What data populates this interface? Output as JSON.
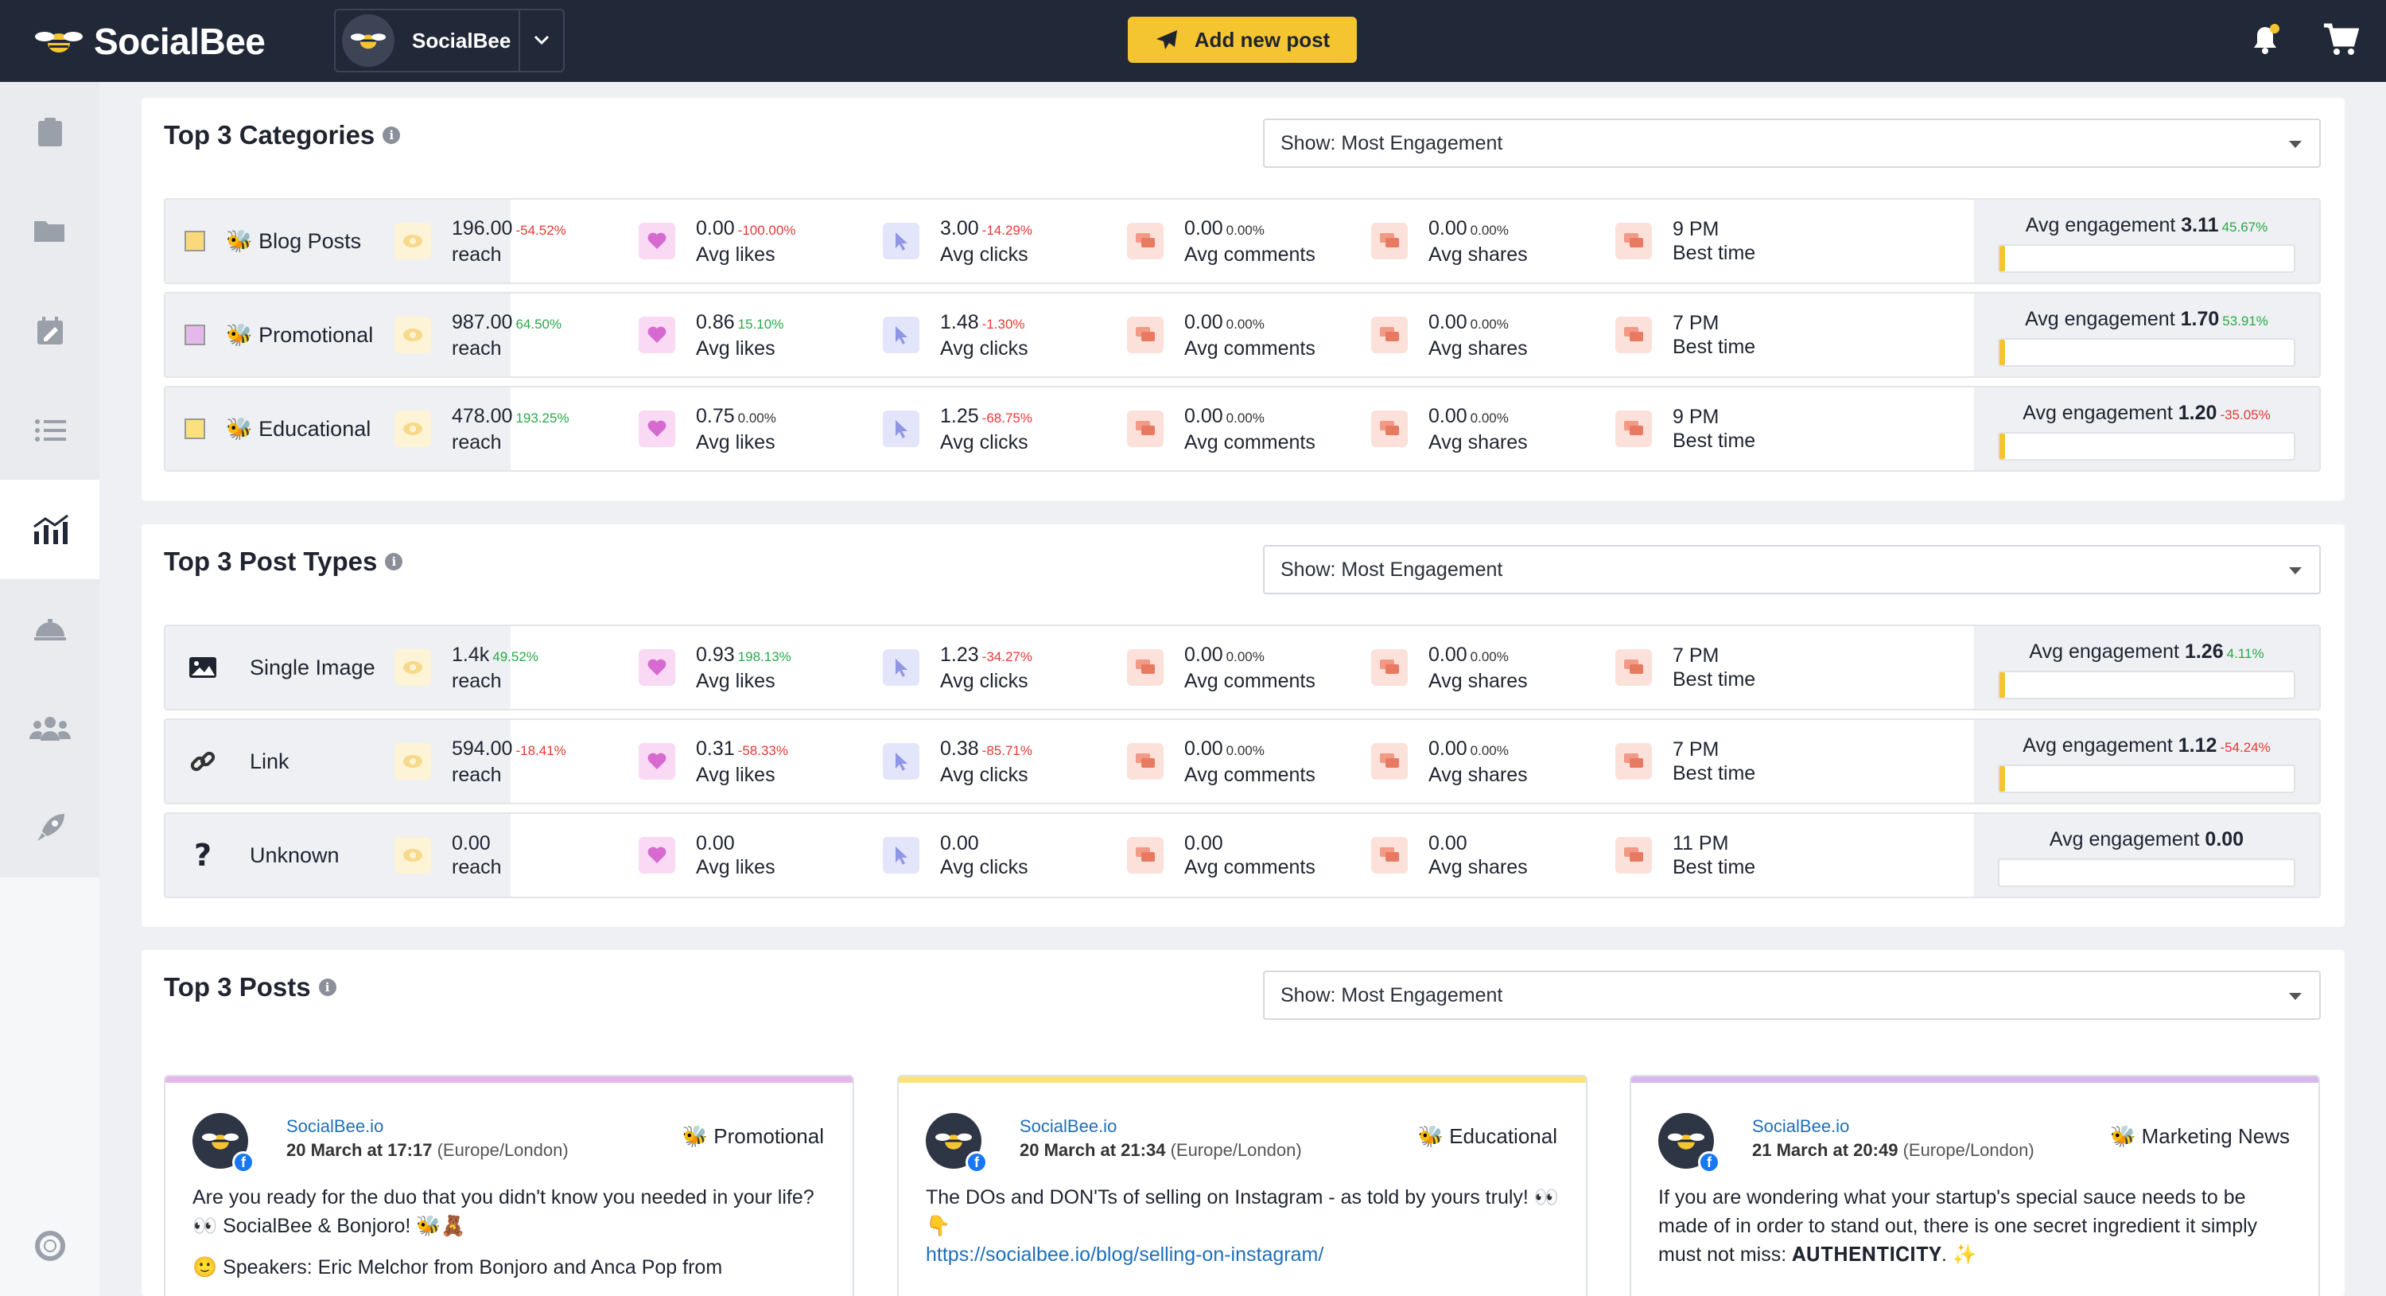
{
  "app": {
    "name": "SocialBee",
    "account": "SocialBee",
    "add_post": "Add new post"
  },
  "colors": {
    "header": "#212837",
    "accent": "#f5c531",
    "positive": "#2aa84a",
    "negative": "#e53935"
  },
  "sidebar": {
    "items": [
      "clipboard-icon",
      "folder-icon",
      "calendar-edit-icon",
      "list-icon",
      "analytics-icon",
      "concierge-bell-icon",
      "audience-icon",
      "rocket-icon"
    ],
    "bottom": "help-lifebuoy-icon"
  },
  "categories": {
    "title": "Top 3 Categories",
    "filter": "Show: Most Engagement",
    "rows": [
      {
        "name": "🐝 Blog Posts",
        "color": "#f9d97a",
        "reach": "196.00",
        "reach_pct": "-54.52%",
        "likes": "0.00",
        "likes_pct": "-100.00%",
        "clicks": "3.00",
        "clicks_pct": "-14.29%",
        "comments": "0.00",
        "comments_pct": "0.00%",
        "shares": "0.00",
        "shares_pct": "0.00%",
        "time": "9 PM",
        "eng_label": "Avg engagement",
        "eng": "3.11",
        "eng_pct": "45.67%",
        "eng_fill": 0.02
      },
      {
        "name": "🐝 Promotional",
        "color": "#e5b8ec",
        "reach": "987.00",
        "reach_pct": "64.50%",
        "likes": "0.86",
        "likes_pct": "15.10%",
        "clicks": "1.48",
        "clicks_pct": "-1.30%",
        "comments": "0.00",
        "comments_pct": "0.00%",
        "shares": "0.00",
        "shares_pct": "0.00%",
        "time": "7 PM",
        "eng_label": "Avg engagement",
        "eng": "1.70",
        "eng_pct": "53.91%",
        "eng_fill": 0.01
      },
      {
        "name": "🐝 Educational",
        "color": "#fbe17c",
        "reach": "478.00",
        "reach_pct": "193.25%",
        "likes": "0.75",
        "likes_pct": "0.00%",
        "clicks": "1.25",
        "clicks_pct": "-68.75%",
        "comments": "0.00",
        "comments_pct": "0.00%",
        "shares": "0.00",
        "shares_pct": "0.00%",
        "time": "9 PM",
        "eng_label": "Avg engagement",
        "eng": "1.20",
        "eng_pct": "-35.05%",
        "eng_fill": 0.01
      }
    ]
  },
  "post_types": {
    "title": "Top 3 Post Types",
    "filter": "Show: Most Engagement",
    "rows": [
      {
        "name": "Single Image",
        "icon": "image-icon",
        "reach": "1.4k",
        "reach_pct": "49.52%",
        "likes": "0.93",
        "likes_pct": "198.13%",
        "clicks": "1.23",
        "clicks_pct": "-34.27%",
        "comments": "0.00",
        "comments_pct": "0.00%",
        "shares": "0.00",
        "shares_pct": "0.00%",
        "time": "7 PM",
        "eng_label": "Avg engagement",
        "eng": "1.26",
        "eng_pct": "4.11%",
        "eng_fill": 0.01
      },
      {
        "name": "Link",
        "icon": "link-icon",
        "reach": "594.00",
        "reach_pct": "-18.41%",
        "likes": "0.31",
        "likes_pct": "-58.33%",
        "clicks": "0.38",
        "clicks_pct": "-85.71%",
        "comments": "0.00",
        "comments_pct": "0.00%",
        "shares": "0.00",
        "shares_pct": "0.00%",
        "time": "7 PM",
        "eng_label": "Avg engagement",
        "eng": "1.12",
        "eng_pct": "-54.24%",
        "eng_fill": 0.01
      },
      {
        "name": "Unknown",
        "icon": "question-icon",
        "reach": "0.00",
        "reach_pct": "",
        "likes": "0.00",
        "likes_pct": "",
        "clicks": "0.00",
        "clicks_pct": "",
        "comments": "0.00",
        "comments_pct": "",
        "shares": "0.00",
        "shares_pct": "",
        "time": "11 PM",
        "eng_label": "Avg engagement",
        "eng": "0.00",
        "eng_pct": "",
        "eng_fill": 0
      }
    ]
  },
  "metric_labels": {
    "reach": "reach",
    "likes": "Avg likes",
    "clicks": "Avg clicks",
    "comments": "Avg comments",
    "shares": "Avg shares",
    "time": "Best time"
  },
  "posts": {
    "title": "Top 3 Posts",
    "filter": "Show: Most Engagement",
    "items": [
      {
        "author": "SocialBee.io",
        "date": "20 March at 17:17",
        "tz": "(Europe/London)",
        "category": "🐝 Promotional",
        "bar": "#e5b8ec",
        "text": "Are you ready for the duo that you didn't know you needed in your life? 👀 SocialBee & Bonjoro! 🐝🧸",
        "text2": "🙂 Speakers: Eric Melchor from Bonjoro and Anca Pop from",
        "link": ""
      },
      {
        "author": "SocialBee.io",
        "date": "20 March at 21:34",
        "tz": "(Europe/London)",
        "category": "🐝 Educational",
        "bar": "#fbe17c",
        "text": "The DOs and DON'Ts of selling on Instagram - as told by yours truly! 👀👇",
        "text2": "",
        "link": "https://socialbee.io/blog/selling-on-instagram/"
      },
      {
        "author": "SocialBee.io",
        "date": "21 March at 20:49",
        "tz": "(Europe/London)",
        "category": "🐝 Marketing News",
        "bar": "#d6b8ec",
        "text": "If you are wondering what your startup's special sauce needs to be made of in order to stand out, there is one secret ingredient it simply must not miss: 𝐀𝐔𝐓𝐇𝐄𝐍𝐓𝐈𝐂𝐈𝐓𝐘. ✨",
        "text2": "",
        "link": ""
      }
    ]
  }
}
